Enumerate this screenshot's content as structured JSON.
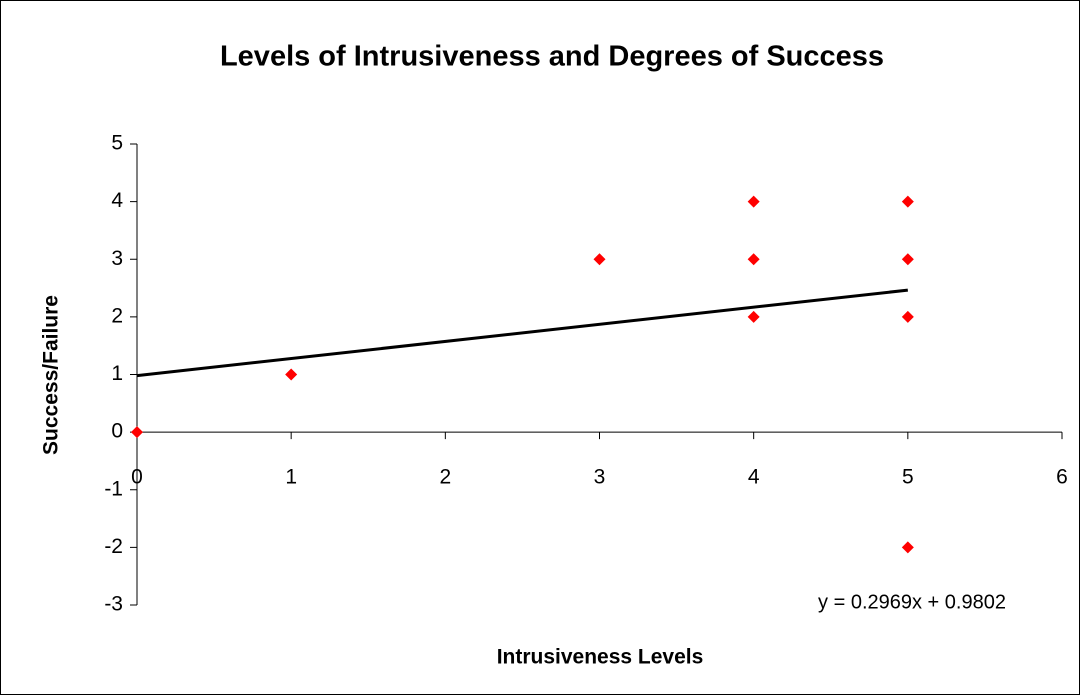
{
  "chart_data": {
    "type": "scatter",
    "title": "Levels of Intrusiveness and Degrees of Success",
    "x_label": "Intrusiveness Levels",
    "y_label": "Success/Failure",
    "x": [
      0,
      1,
      3,
      4,
      4,
      4,
      5,
      5,
      5,
      5
    ],
    "values": [
      0,
      1,
      3,
      4,
      3,
      2,
      4,
      3,
      2,
      -2
    ],
    "color": "#ff0000",
    "xlim": [
      0,
      6
    ],
    "xticks": [
      0,
      1,
      2,
      3,
      4,
      5,
      6
    ],
    "ylim": [
      -3,
      5
    ],
    "yticks": [
      -3,
      -2,
      -1,
      0,
      1,
      2,
      3,
      4,
      5
    ],
    "grid": false,
    "trendline": {
      "slope": 0.2969,
      "intercept": 0.9802,
      "x_range": [
        0,
        5
      ],
      "label": "y = 0.2969x + 0.9802",
      "color": "#000000"
    }
  }
}
